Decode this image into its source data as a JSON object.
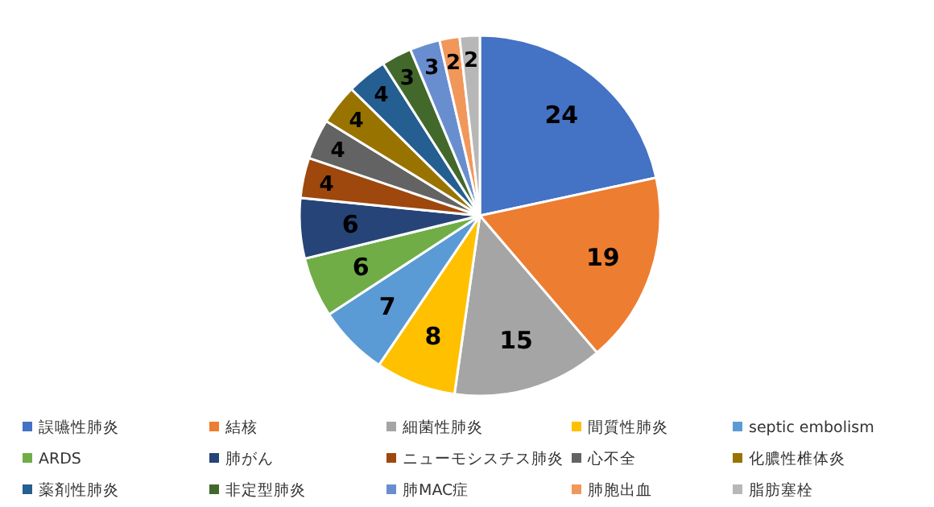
{
  "chart_data": {
    "type": "pie",
    "categories": [
      "誤嚥性肺炎",
      "結核",
      "細菌性肺炎",
      "間質性肺炎",
      "septic embolism",
      "ARDS",
      "肺がん",
      "ニューモシスチス肺炎",
      "心不全",
      "化膿性椎体炎",
      "薬剤性肺炎",
      "非定型肺炎",
      "肺MAC症",
      "肺胞出血",
      "脂肪塞栓"
    ],
    "values": [
      24,
      19,
      15,
      8,
      7,
      6,
      6,
      4,
      4,
      4,
      4,
      3,
      3,
      2,
      2
    ],
    "colors": [
      "#4472c4",
      "#ed7d31",
      "#a5a5a5",
      "#ffc000",
      "#5b9bd5",
      "#70ad47",
      "#264478",
      "#9e480e",
      "#636363",
      "#997300",
      "#255e91",
      "#43682b",
      "#698ed0",
      "#f1975a",
      "#b7b7b7"
    ],
    "data_labels": true,
    "legend": "bottom"
  }
}
